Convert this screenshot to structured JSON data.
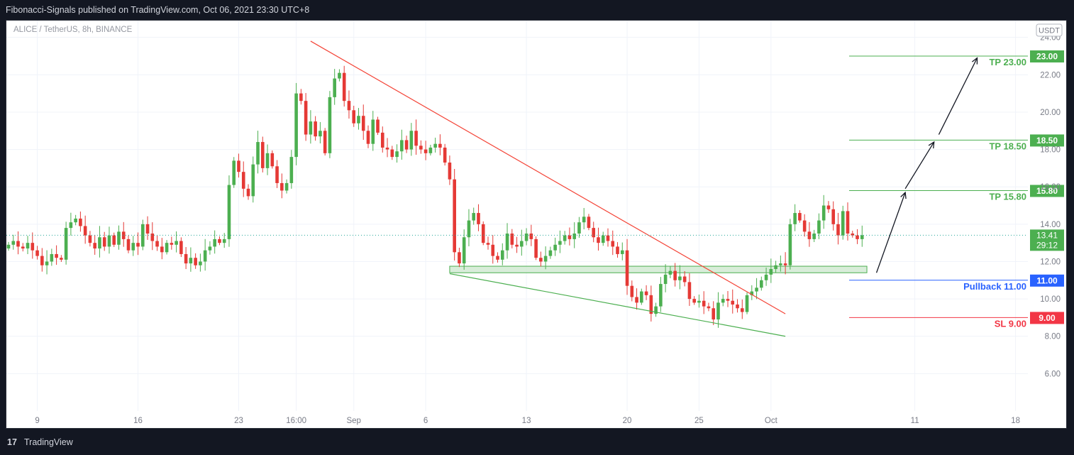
{
  "header": {
    "published_text": "Fibonacci-Signals published on TradingView.com, Oct 06, 2021 23:30 UTC+8"
  },
  "footer": {
    "logo_glyph": "17",
    "brand": "TradingView"
  },
  "colors": {
    "up": "#26a69a",
    "up_body": "#4caf50",
    "down": "#ef5350",
    "down_body": "#e53935",
    "tp": "#4caf50",
    "pullback": "#2962ff",
    "sl": "#f23645",
    "trend_down": "#f44336",
    "trend_up": "#4caf50",
    "zone_fill": "#c8e6c9",
    "zone_stroke": "#4caf50",
    "axis_text": "#787b86",
    "grid": "#f0f3fa"
  },
  "chart_data": {
    "type": "candlestick",
    "symbol_label": "ALICE / TetherUS, 8h, BINANCE",
    "currency_badge": "USDT",
    "ylim": [
      4.0,
      24.9
    ],
    "y_ticks": [
      "24.00",
      "22.00",
      "20.00",
      "18.00",
      "16.00",
      "14.00",
      "12.00",
      "10.00",
      "8.00",
      "6.00"
    ],
    "x_ticks": [
      {
        "label": "9",
        "bar": 6
      },
      {
        "label": "16",
        "bar": 27
      },
      {
        "label": "23",
        "bar": 48
      },
      {
        "label": "16:00",
        "bar": 60
      },
      {
        "label": "Sep",
        "bar": 72
      },
      {
        "label": "6",
        "bar": 87
      },
      {
        "label": "13",
        "bar": 108
      },
      {
        "label": "20",
        "bar": 129
      },
      {
        "label": "25",
        "bar": 144
      },
      {
        "label": "Oct",
        "bar": 159
      },
      {
        "label": "11",
        "bar": 189
      },
      {
        "label": "18",
        "bar": 210
      }
    ],
    "current_price": {
      "value": 13.41,
      "label": "13.41",
      "countdown": "29:12"
    },
    "levels": [
      {
        "name": "TP 23.00",
        "value": 23.0,
        "tag": "23.00",
        "kind": "tp"
      },
      {
        "name": "TP 18.50",
        "value": 18.5,
        "tag": "18.50",
        "kind": "tp"
      },
      {
        "name": "TP 15.80",
        "value": 15.8,
        "tag": "15.80",
        "kind": "tp"
      },
      {
        "name": "Pullback 11.00",
        "value": 11.0,
        "tag": "11.00",
        "kind": "pullback"
      },
      {
        "name": "SL 9.00",
        "value": 9.0,
        "tag": "9.00",
        "kind": "sl"
      }
    ],
    "zone": {
      "bar_start": 92,
      "bar_end": 179,
      "low": 11.4,
      "high": 11.75
    },
    "trendlines": [
      {
        "kind": "down",
        "from": {
          "bar": 63,
          "price": 23.8
        },
        "to": {
          "bar": 162,
          "price": 9.2
        }
      },
      {
        "kind": "up",
        "from": {
          "bar": 92,
          "price": 11.35
        },
        "to": {
          "bar": 162,
          "price": 8.0
        }
      }
    ],
    "projection_arrows": [
      {
        "from": {
          "bar": 181,
          "price": 11.4
        },
        "to": {
          "bar": 187,
          "price": 15.7
        }
      },
      {
        "from": {
          "bar": 187,
          "price": 15.9
        },
        "to": {
          "bar": 193,
          "price": 18.4
        }
      },
      {
        "from": {
          "bar": 194,
          "price": 18.8
        },
        "to": {
          "bar": 202,
          "price": 22.9
        }
      }
    ],
    "closes": [
      12.9,
      13.1,
      12.8,
      12.7,
      13.0,
      12.6,
      12.3,
      11.8,
      12.0,
      12.4,
      12.2,
      12.1,
      13.8,
      14.1,
      14.3,
      13.9,
      13.4,
      13.0,
      12.7,
      13.3,
      12.8,
      13.4,
      12.9,
      13.6,
      13.2,
      12.6,
      13.0,
      12.8,
      14.0,
      13.5,
      13.1,
      12.8,
      12.5,
      13.0,
      12.9,
      13.1,
      12.4,
      11.9,
      12.2,
      11.8,
      12.0,
      12.6,
      12.8,
      13.2,
      13.0,
      13.2,
      16.1,
      17.4,
      16.8,
      15.9,
      15.5,
      17.2,
      18.4,
      17.0,
      17.8,
      17.1,
      16.2,
      15.8,
      16.2,
      17.6,
      21.0,
      20.6,
      18.8,
      19.5,
      18.7,
      19.0,
      17.8,
      20.8,
      21.8,
      22.1,
      20.6,
      20.1,
      19.4,
      19.8,
      19.0,
      18.3,
      19.6,
      18.9,
      18.1,
      18.0,
      17.6,
      17.9,
      18.5,
      18.0,
      19.0,
      18.2,
      18.0,
      17.8,
      18.1,
      18.3,
      18.1,
      17.3,
      16.4,
      12.5,
      11.9,
      13.3,
      14.2,
      14.6,
      14.0,
      13.0,
      12.9,
      12.3,
      12.1,
      12.6,
      13.5,
      12.9,
      12.8,
      13.1,
      13.5,
      13.2,
      12.2,
      12.0,
      12.3,
      12.6,
      12.9,
      13.1,
      13.4,
      13.2,
      13.5,
      14.1,
      14.4,
      13.8,
      13.3,
      13.0,
      13.4,
      13.1,
      12.8,
      12.4,
      12.6,
      10.7,
      10.1,
      9.8,
      10.4,
      10.2,
      9.2,
      9.6,
      10.8,
      11.3,
      11.5,
      11.0,
      11.2,
      10.9,
      10.0,
      9.8,
      9.9,
      9.6,
      9.5,
      8.9,
      9.8,
      10.0,
      9.9,
      9.7,
      9.5,
      9.3,
      10.2,
      10.4,
      10.6,
      11.0,
      11.3,
      11.6,
      11.8,
      11.9,
      11.8,
      14.0,
      14.6,
      14.2,
      13.6,
      13.2,
      13.5,
      14.2,
      15.0,
      14.8,
      14.0,
      13.4,
      14.7,
      13.5,
      13.4,
      13.2,
      13.41
    ]
  }
}
